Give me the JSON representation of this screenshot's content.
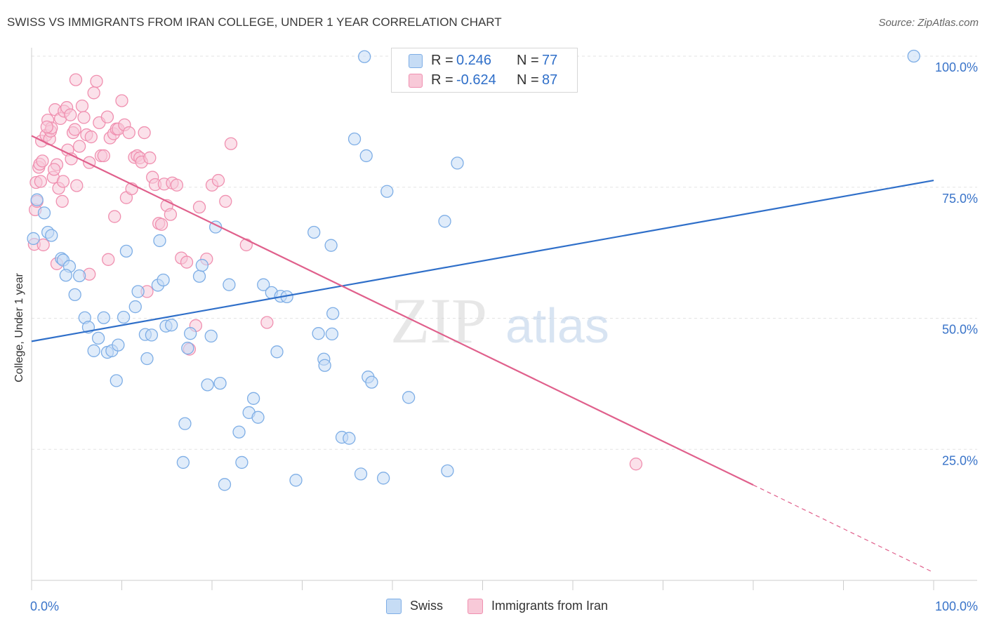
{
  "header": {
    "title": "SWISS VS IMMIGRANTS FROM IRAN COLLEGE, UNDER 1 YEAR CORRELATION CHART",
    "source": "Source: ZipAtlas.com"
  },
  "watermark": {
    "zip": "ZIP",
    "atlas": "atlas"
  },
  "stats_legend": {
    "r_label": "R =",
    "n_label": "N =",
    "swiss": {
      "r": "0.246",
      "n": "77"
    },
    "iran": {
      "r": "-0.624",
      "n": "87"
    }
  },
  "chart_data": {
    "type": "scatter",
    "title": "SWISS VS IMMIGRANTS FROM IRAN COLLEGE, UNDER 1 YEAR CORRELATION CHART",
    "xlabel": "",
    "ylabel": "College, Under 1 year",
    "xlim": [
      0,
      100
    ],
    "ylim": [
      0,
      100
    ],
    "x_tick_labels": [
      "0.0%",
      "100.0%"
    ],
    "y_tick_labels": [
      "25.0%",
      "50.0%",
      "75.0%",
      "100.0%"
    ],
    "y_ticks": [
      25,
      50,
      75,
      100
    ],
    "grid": true,
    "legend_position": "bottom-center",
    "series": [
      {
        "name": "Swiss",
        "color": "#7eaee6",
        "fill": "#c6dcf5",
        "trend": {
          "x": [
            0,
            100
          ],
          "y": [
            45.6,
            76.3
          ],
          "color": "#2f6fc9"
        },
        "points": [
          [
            0.2,
            65.2
          ],
          [
            0.6,
            72.6
          ],
          [
            1.4,
            70.1
          ],
          [
            1.8,
            66.4
          ],
          [
            2.2,
            65.8
          ],
          [
            3.3,
            61.4
          ],
          [
            3.5,
            61.1
          ],
          [
            4.2,
            59.9
          ],
          [
            3.8,
            58.2
          ],
          [
            5.3,
            58.1
          ],
          [
            4.8,
            54.5
          ],
          [
            5.9,
            50.1
          ],
          [
            6.3,
            48.3
          ],
          [
            7.4,
            46.2
          ],
          [
            8.0,
            50.1
          ],
          [
            6.9,
            43.8
          ],
          [
            8.4,
            43.5
          ],
          [
            8.9,
            43.8
          ],
          [
            9.6,
            44.9
          ],
          [
            9.4,
            38.1
          ],
          [
            10.2,
            50.2
          ],
          [
            10.5,
            62.8
          ],
          [
            11.5,
            52.2
          ],
          [
            11.8,
            55.1
          ],
          [
            12.6,
            46.9
          ],
          [
            12.8,
            42.3
          ],
          [
            13.3,
            46.8
          ],
          [
            14.0,
            56.3
          ],
          [
            14.2,
            64.8
          ],
          [
            14.6,
            57.3
          ],
          [
            14.9,
            48.5
          ],
          [
            15.5,
            48.7
          ],
          [
            17.3,
            44.3
          ],
          [
            17.6,
            47.1
          ],
          [
            18.6,
            58.0
          ],
          [
            18.9,
            60.1
          ],
          [
            19.5,
            37.3
          ],
          [
            19.9,
            46.6
          ],
          [
            20.4,
            67.4
          ],
          [
            20.9,
            37.6
          ],
          [
            21.9,
            56.4
          ],
          [
            23.0,
            28.3
          ],
          [
            23.3,
            22.5
          ],
          [
            24.1,
            32.0
          ],
          [
            24.6,
            34.7
          ],
          [
            25.1,
            31.1
          ],
          [
            25.7,
            56.4
          ],
          [
            26.6,
            54.9
          ],
          [
            27.2,
            43.6
          ],
          [
            27.6,
            54.2
          ],
          [
            28.3,
            54.1
          ],
          [
            29.3,
            19.1
          ],
          [
            21.4,
            18.3
          ],
          [
            17.0,
            29.9
          ],
          [
            16.8,
            22.5
          ],
          [
            31.3,
            66.4
          ],
          [
            32.4,
            42.2
          ],
          [
            31.8,
            47.1
          ],
          [
            32.5,
            41.0
          ],
          [
            33.2,
            63.9
          ],
          [
            33.3,
            47.0
          ],
          [
            33.4,
            50.9
          ],
          [
            34.4,
            27.3
          ],
          [
            35.2,
            27.1
          ],
          [
            35.8,
            84.2
          ],
          [
            36.5,
            20.3
          ],
          [
            36.9,
            99.9
          ],
          [
            37.1,
            81.0
          ],
          [
            37.3,
            38.8
          ],
          [
            37.7,
            37.8
          ],
          [
            39.0,
            19.5
          ],
          [
            39.4,
            74.2
          ],
          [
            41.8,
            34.9
          ],
          [
            45.8,
            68.5
          ],
          [
            46.1,
            20.9
          ],
          [
            47.2,
            79.6
          ],
          [
            97.8,
            100.0
          ]
        ]
      },
      {
        "name": "Immigrants from Iran",
        "color": "#f090b0",
        "fill": "#f8c9d8",
        "trend": {
          "x": [
            0,
            80
          ],
          "y": [
            84.8,
            18.2
          ],
          "dash_to": [
            100,
            1.5
          ],
          "color": "#e0608c"
        },
        "points": [
          [
            0.3,
            64.1
          ],
          [
            0.4,
            70.7
          ],
          [
            0.5,
            75.9
          ],
          [
            0.6,
            72.3
          ],
          [
            0.8,
            78.8
          ],
          [
            0.9,
            79.4
          ],
          [
            1.0,
            76.1
          ],
          [
            1.1,
            83.8
          ],
          [
            1.2,
            80.0
          ],
          [
            1.3,
            64.0
          ],
          [
            1.6,
            84.9
          ],
          [
            1.8,
            87.8
          ],
          [
            2.0,
            84.2
          ],
          [
            2.1,
            85.7
          ],
          [
            2.2,
            86.3
          ],
          [
            2.4,
            76.9
          ],
          [
            2.6,
            89.8
          ],
          [
            2.8,
            79.3
          ],
          [
            3.0,
            74.8
          ],
          [
            3.2,
            88.1
          ],
          [
            3.5,
            76.1
          ],
          [
            3.4,
            72.3
          ],
          [
            3.6,
            89.5
          ],
          [
            3.9,
            90.2
          ],
          [
            4.3,
            88.8
          ],
          [
            4.0,
            82.1
          ],
          [
            4.4,
            80.4
          ],
          [
            4.6,
            85.4
          ],
          [
            4.8,
            86.0
          ],
          [
            5.0,
            75.3
          ],
          [
            5.3,
            82.8
          ],
          [
            5.6,
            90.5
          ],
          [
            5.8,
            88.3
          ],
          [
            6.1,
            85.0
          ],
          [
            6.4,
            79.7
          ],
          [
            6.6,
            84.6
          ],
          [
            6.9,
            93.0
          ],
          [
            7.2,
            95.2
          ],
          [
            7.5,
            87.3
          ],
          [
            7.7,
            81.0
          ],
          [
            8.0,
            81.0
          ],
          [
            8.4,
            88.4
          ],
          [
            8.7,
            84.4
          ],
          [
            9.1,
            85.2
          ],
          [
            9.4,
            86.1
          ],
          [
            9.6,
            86.1
          ],
          [
            10.0,
            91.5
          ],
          [
            10.3,
            86.9
          ],
          [
            10.5,
            73.0
          ],
          [
            10.8,
            85.4
          ],
          [
            11.1,
            74.7
          ],
          [
            11.4,
            80.7
          ],
          [
            11.7,
            81.0
          ],
          [
            12.0,
            80.6
          ],
          [
            12.2,
            79.8
          ],
          [
            12.5,
            85.4
          ],
          [
            12.8,
            55.1
          ],
          [
            13.1,
            80.6
          ],
          [
            13.4,
            76.9
          ],
          [
            13.7,
            75.5
          ],
          [
            14.1,
            68.1
          ],
          [
            14.4,
            67.9
          ],
          [
            14.7,
            75.6
          ],
          [
            15.0,
            71.5
          ],
          [
            15.4,
            69.8
          ],
          [
            15.6,
            75.8
          ],
          [
            16.1,
            75.4
          ],
          [
            16.6,
            61.5
          ],
          [
            17.2,
            60.7
          ],
          [
            17.5,
            44.1
          ],
          [
            18.2,
            48.6
          ],
          [
            18.6,
            71.2
          ],
          [
            19.4,
            61.3
          ],
          [
            20.0,
            75.4
          ],
          [
            20.7,
            76.3
          ],
          [
            21.5,
            72.3
          ],
          [
            22.1,
            83.3
          ],
          [
            23.8,
            64.0
          ],
          [
            26.1,
            49.2
          ],
          [
            8.5,
            61.2
          ],
          [
            9.2,
            69.4
          ],
          [
            6.4,
            58.4
          ],
          [
            2.8,
            60.4
          ],
          [
            1.7,
            86.5
          ],
          [
            4.9,
            95.5
          ],
          [
            2.5,
            78.4
          ],
          [
            67.0,
            22.2
          ]
        ]
      }
    ]
  }
}
